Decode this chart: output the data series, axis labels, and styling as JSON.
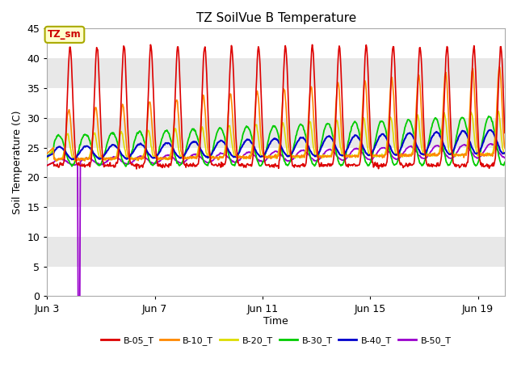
{
  "title": "TZ SoilVue B Temperature",
  "ylabel": "Soil Temperature (C)",
  "xlabel": "Time",
  "ylim": [
    0,
    45
  ],
  "n_days": 17,
  "tick_positions": [
    0,
    4,
    8,
    12,
    16
  ],
  "tick_labels": [
    "Jun 3",
    "Jun 7",
    "Jun 11",
    "Jun 15",
    "Jun 19"
  ],
  "yticks": [
    0,
    5,
    10,
    15,
    20,
    25,
    30,
    35,
    40,
    45
  ],
  "series_colors": {
    "B-05_T": "#dd0000",
    "B-10_T": "#ff8800",
    "B-20_T": "#dddd00",
    "B-30_T": "#00cc00",
    "B-40_T": "#0000cc",
    "B-50_T": "#9900cc"
  },
  "band_color_white": "#ffffff",
  "band_color_grey": "#e8e8e8",
  "title_fontsize": 11,
  "axis_label_fontsize": 9,
  "tick_fontsize": 9,
  "annotation_label": "TZ_sm",
  "fig_bg": "#ffffff"
}
